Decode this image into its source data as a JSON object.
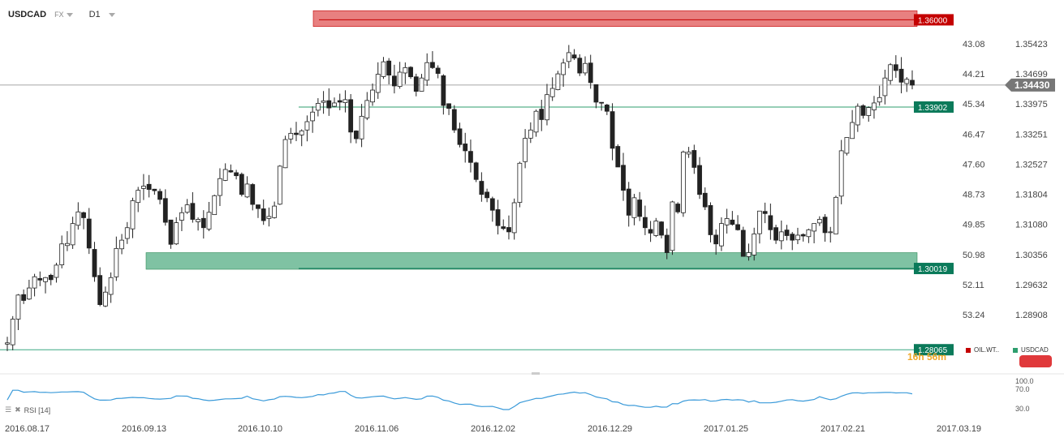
{
  "header": {
    "symbol": "USDCAD",
    "market": "FX",
    "timeframe": "D1"
  },
  "chart_data": {
    "type": "candlestick",
    "price_axis": [
      "1.35423",
      "1.34699",
      "1.33975",
      "1.33251",
      "1.32527",
      "1.31804",
      "1.31080",
      "1.30356",
      "1.29632",
      "1.28908"
    ],
    "price_ticks_numeric": [
      1.35423,
      1.34699,
      1.33975,
      1.33251,
      1.32527,
      1.31804,
      1.3108,
      1.30356,
      1.29632,
      1.28908
    ],
    "secondary_axis": [
      "43.08",
      "44.21",
      "45.34",
      "46.47",
      "47.60",
      "48.73",
      "49.85",
      "50.98",
      "52.11",
      "53.24"
    ],
    "x_ticks": [
      "2016.08.17",
      "2016.09.13",
      "2016.10.10",
      "2016.11.06",
      "2016.12.02",
      "2016.12.29",
      "2017.01.25",
      "2017.02.21",
      "2017.03.19"
    ],
    "ylim": [
      1.278,
      1.362
    ],
    "current_price": "1.34430",
    "levels": [
      {
        "label": "1.36000",
        "value": 1.36,
        "color": "#c40000",
        "kind": "resistance-zone"
      },
      {
        "label": "1.33902",
        "value": 1.33902,
        "color": "#2e8b57",
        "kind": "line"
      },
      {
        "label": "1.30019",
        "value": 1.30019,
        "color": "#0b7a5a",
        "kind": "support-zone"
      },
      {
        "label": "1.28065",
        "value": 1.28065,
        "color": "#0b7a5a",
        "kind": "line"
      }
    ],
    "series_close": [
      1.2823,
      1.288,
      1.2938,
      1.2925,
      1.2955,
      1.2982,
      1.2974,
      1.298,
      1.2975,
      1.301,
      1.3061,
      1.3062,
      1.311,
      1.3138,
      1.3124,
      1.3051,
      1.2982,
      1.2915,
      1.2945,
      1.298,
      1.305,
      1.307,
      1.31,
      1.3165,
      1.319,
      1.32,
      1.3192,
      1.3189,
      1.3168,
      1.3113,
      1.306,
      1.3112,
      1.3136,
      1.3155,
      1.312,
      1.312,
      1.31,
      1.3137,
      1.3177,
      1.3218,
      1.324,
      1.3234,
      1.3225,
      1.318,
      1.3205,
      1.3156,
      1.3146,
      1.3117,
      1.3127,
      1.3152,
      1.3248,
      1.3312,
      1.3327,
      1.3324,
      1.3333,
      1.3355,
      1.3378,
      1.3399,
      1.3405,
      1.3388,
      1.34,
      1.3402,
      1.3408,
      1.333,
      1.3314,
      1.3368,
      1.3406,
      1.3431,
      1.3469,
      1.3499,
      1.3467,
      1.3441,
      1.3474,
      1.3485,
      1.3463,
      1.3428,
      1.346,
      1.3497,
      1.3485,
      1.3471,
      1.3394,
      1.3387,
      1.3335,
      1.33,
      1.3285,
      1.3257,
      1.3216,
      1.318,
      1.3172,
      1.3142,
      1.3105,
      1.3098,
      1.309,
      1.316,
      1.3255,
      1.3315,
      1.3335,
      1.338,
      1.336,
      1.342,
      1.3435,
      1.347,
      1.3496,
      1.3521,
      1.3508,
      1.3472,
      1.3495,
      1.3449,
      1.3402,
      1.34,
      1.338,
      1.3291,
      1.3246,
      1.319,
      1.313,
      1.3172,
      1.3127,
      1.31,
      1.3087,
      1.3116,
      1.3082,
      1.304,
      1.3162,
      1.3138,
      1.3282,
      1.3282,
      1.3245,
      1.318,
      1.315,
      1.3083,
      1.3061,
      1.311,
      1.3122,
      1.3108,
      1.3095,
      1.3031,
      1.304,
      1.3085,
      1.314,
      1.3134,
      1.3095,
      1.307,
      1.309,
      1.3081,
      1.307,
      1.3082,
      1.308,
      1.3095,
      1.311,
      1.312,
      1.3088,
      1.309,
      1.3173,
      1.3285,
      1.3317,
      1.3353,
      1.3392,
      1.337,
      1.3389,
      1.34,
      1.3413,
      1.346,
      1.3492,
      1.3478,
      1.345,
      1.3457,
      1.3443
    ]
  },
  "rsi": {
    "label": "RSI [14]",
    "levels": [
      "100.0",
      "70.0",
      "30.0"
    ]
  },
  "legend": [
    {
      "name": "OIL.WT..",
      "color": "#c40000"
    },
    {
      "name": "USDCAD",
      "color": "#2e9e6e"
    }
  ],
  "timer": "16h 56m"
}
